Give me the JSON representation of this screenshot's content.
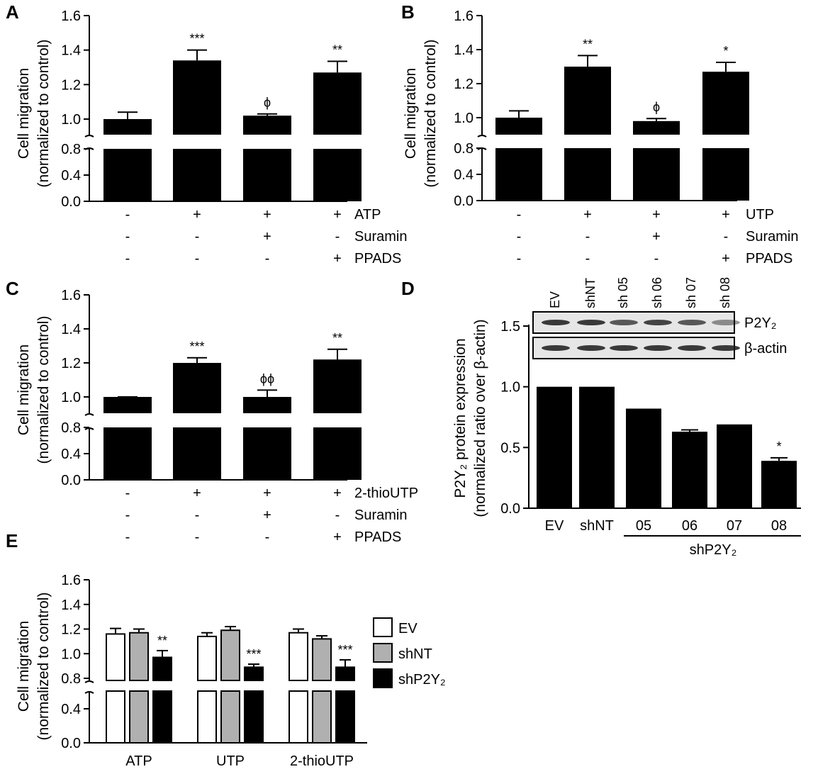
{
  "chart_data": [
    {
      "panel": "A",
      "type": "bar",
      "ylabel": [
        "Cell migration",
        "(normalized to control)"
      ],
      "ylim": [
        0,
        1.6
      ],
      "upper_ticks": [
        "1.6",
        "1.4",
        "1.2",
        "1.0"
      ],
      "lower_ticks": [
        "0.8",
        "0.4",
        "0.0"
      ],
      "values": [
        1.0,
        1.34,
        1.02,
        1.27
      ],
      "errors": [
        0.04,
        0.06,
        0.01,
        0.065
      ],
      "annotations": [
        "",
        "***",
        "ϕ",
        "**"
      ],
      "conditions": [
        {
          "label": "ATP",
          "signs": [
            "-",
            "+",
            "+",
            "+"
          ]
        },
        {
          "label": "Suramin",
          "signs": [
            "-",
            "-",
            "+",
            "-"
          ]
        },
        {
          "label": "PPADS",
          "signs": [
            "-",
            "-",
            "-",
            "+"
          ]
        }
      ]
    },
    {
      "panel": "B",
      "type": "bar",
      "ylabel": [
        "Cell migration",
        "(normalized to control)"
      ],
      "ylim": [
        0,
        1.6
      ],
      "upper_ticks": [
        "1.6",
        "1.4",
        "1.2",
        "1.0"
      ],
      "lower_ticks": [
        "0.8",
        "0.4",
        "0.0"
      ],
      "values": [
        1.0,
        1.3,
        0.98,
        1.27
      ],
      "errors": [
        0.04,
        0.065,
        0.015,
        0.055
      ],
      "annotations": [
        "",
        "**",
        "ϕ",
        "*"
      ],
      "conditions": [
        {
          "label": "UTP",
          "signs": [
            "-",
            "+",
            "+",
            "+"
          ]
        },
        {
          "label": "Suramin",
          "signs": [
            "-",
            "-",
            "+",
            "-"
          ]
        },
        {
          "label": "PPADS",
          "signs": [
            "-",
            "-",
            "-",
            "+"
          ]
        }
      ]
    },
    {
      "panel": "C",
      "type": "bar",
      "ylabel": [
        "Cell migration",
        "(normalized to control)"
      ],
      "ylim": [
        0,
        1.6
      ],
      "upper_ticks": [
        "1.6",
        "1.4",
        "1.2",
        "1.0"
      ],
      "lower_ticks": [
        "0.8",
        "0.4",
        "0.0"
      ],
      "values": [
        1.0,
        1.2,
        1.0,
        1.22
      ],
      "errors": [
        0.0,
        0.03,
        0.04,
        0.06
      ],
      "annotations": [
        "",
        "***",
        "ϕϕ",
        "**"
      ],
      "conditions": [
        {
          "label": "2-thioUTP",
          "signs": [
            "-",
            "+",
            "+",
            "+"
          ]
        },
        {
          "label": "Suramin",
          "signs": [
            "-",
            "-",
            "+",
            "-"
          ]
        },
        {
          "label": "PPADS",
          "signs": [
            "-",
            "-",
            "-",
            "+"
          ]
        }
      ]
    },
    {
      "panel": "D",
      "type": "bar",
      "ylabel": [
        "P2Y₂ protein expression",
        "(normalized ratio over β-actin)"
      ],
      "ylim": [
        0,
        1.5
      ],
      "ticks": [
        "1.5",
        "1.0",
        "0.5",
        "0.0"
      ],
      "categories": [
        "EV",
        "shNT",
        "05",
        "06",
        "07",
        "08"
      ],
      "values": [
        1.0,
        1.0,
        0.82,
        0.63,
        0.69,
        0.39
      ],
      "errors": [
        0,
        0,
        0,
        0.015,
        0,
        0.025
      ],
      "annotations": [
        "",
        "",
        "",
        "",
        "",
        "*"
      ],
      "group_label": "shP2Y₂",
      "blot_lanes": [
        "EV",
        "shNT",
        "sh 05",
        "sh 06",
        "sh 07",
        "sh 08"
      ],
      "blot_rows": [
        "P2Y₂",
        "β-actin"
      ]
    },
    {
      "panel": "E",
      "type": "bar",
      "ylabel": [
        "Cell migration",
        "(normalized to control)"
      ],
      "ylim": [
        0,
        1.6
      ],
      "upper_ticks": [
        "1.6",
        "1.4",
        "1.2",
        "1.0",
        "0.8"
      ],
      "lower_ticks": [
        "0.4",
        "0.0"
      ],
      "categories": [
        "ATP",
        "UTP",
        "2-thioUTP"
      ],
      "series": [
        {
          "name": "EV",
          "color": "#ffffff",
          "values": [
            1.16,
            1.14,
            1.17
          ],
          "errors": [
            0.045,
            0.03,
            0.03
          ]
        },
        {
          "name": "shNT",
          "color": "#b0b0b0",
          "values": [
            1.17,
            1.19,
            1.12
          ],
          "errors": [
            0.03,
            0.03,
            0.025
          ]
        },
        {
          "name": "shP2Y₂",
          "color": "#000000",
          "values": [
            0.97,
            0.89,
            0.89
          ],
          "errors": [
            0.055,
            0.025,
            0.06
          ]
        }
      ],
      "annotations": [
        "**",
        "***",
        "***"
      ]
    }
  ]
}
